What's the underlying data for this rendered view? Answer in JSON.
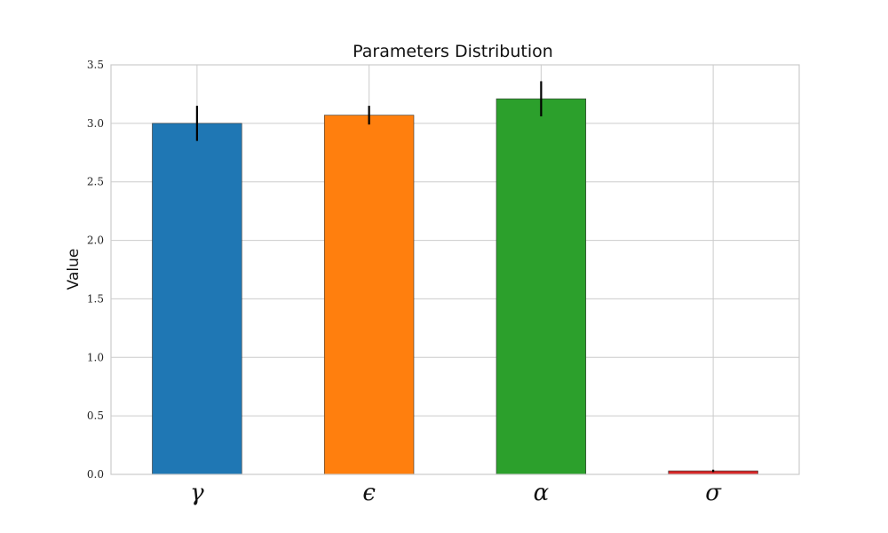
{
  "chart_data": {
    "type": "bar",
    "title": "Parameters Distribution",
    "xlabel": "",
    "ylabel": "Value",
    "categories": [
      "γ",
      "ϵ",
      "α",
      "σ"
    ],
    "values": [
      3.0,
      3.07,
      3.21,
      0.03
    ],
    "errors": [
      0.15,
      0.08,
      0.15,
      0.01
    ],
    "colors": [
      "#1f77b4",
      "#ff7f0e",
      "#2ca02c",
      "#d62728"
    ],
    "ylim": [
      0,
      3.5
    ],
    "yticks": [
      "0.0",
      "0.5",
      "1.0",
      "1.5",
      "2.0",
      "2.5",
      "3.0",
      "3.5"
    ],
    "grid": true,
    "legend": "none"
  }
}
